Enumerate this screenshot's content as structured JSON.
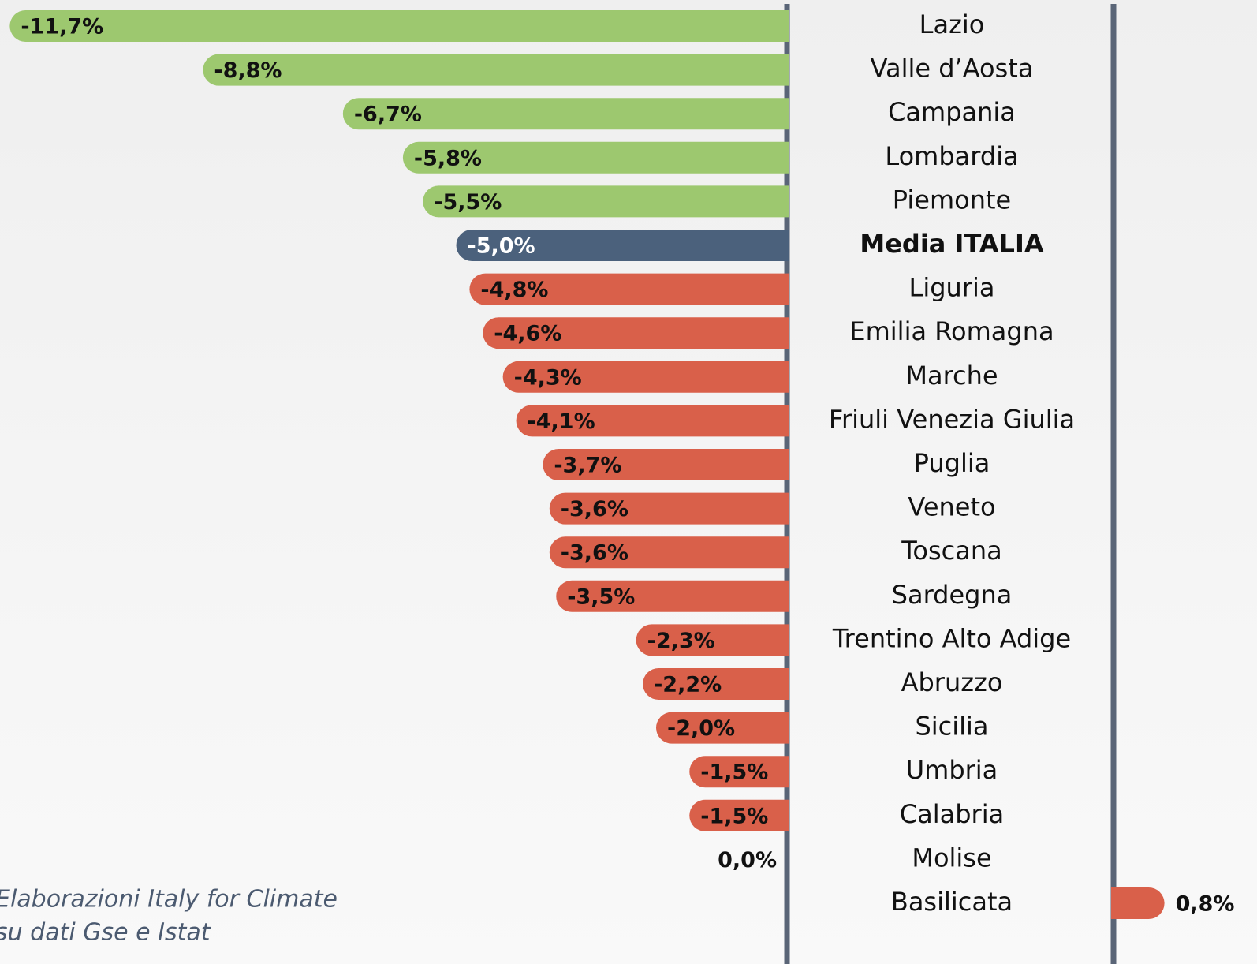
{
  "chart_data": {
    "type": "bar",
    "orientation": "horizontal",
    "categories": [
      "Lazio",
      "Valle d’Aosta",
      "Campania",
      "Lombardia",
      "Piemonte",
      "Media ITALIA",
      "Liguria",
      "Emilia Romagna",
      "Marche",
      "Friuli Venezia Giulia",
      "Puglia",
      "Veneto",
      "Toscana",
      "Sardegna",
      "Trentino Alto Adige",
      "Abruzzo",
      "Sicilia",
      "Umbria",
      "Calabria",
      "Molise",
      "Basilicata"
    ],
    "values": [
      -11.7,
      -8.8,
      -6.7,
      -5.8,
      -5.5,
      -5.0,
      -4.8,
      -4.6,
      -4.3,
      -4.1,
      -3.7,
      -3.6,
      -3.6,
      -3.5,
      -2.3,
      -2.2,
      -2.0,
      -1.5,
      -1.5,
      0.0,
      0.8
    ],
    "value_labels": [
      "-11,7%",
      "-8,8%",
      "-6,7%",
      "-5,8%",
      "-5,5%",
      "-5,0%",
      "-4,8%",
      "-4,6%",
      "-4,3%",
      "-4,1%",
      "-3,7%",
      "-3,6%",
      "-3,6%",
      "-3,5%",
      "-2,3%",
      "-2,2%",
      "-2,0%",
      "-1,5%",
      "-1,5%",
      "0,0%",
      "0,8%"
    ],
    "colors": [
      "#9dc86f",
      "#9dc86f",
      "#9dc86f",
      "#9dc86f",
      "#9dc86f",
      "#4b617c",
      "#d9604a",
      "#d9604a",
      "#d9604a",
      "#d9604a",
      "#d9604a",
      "#d9604a",
      "#d9604a",
      "#d9604a",
      "#d9604a",
      "#d9604a",
      "#d9604a",
      "#d9604a",
      "#d9604a",
      "#d9604a",
      "#d9604a"
    ],
    "highlight": "Media ITALIA",
    "source": [
      "Elaborazioni Italy for Climate",
      "su dati Gse e Istat"
    ]
  }
}
